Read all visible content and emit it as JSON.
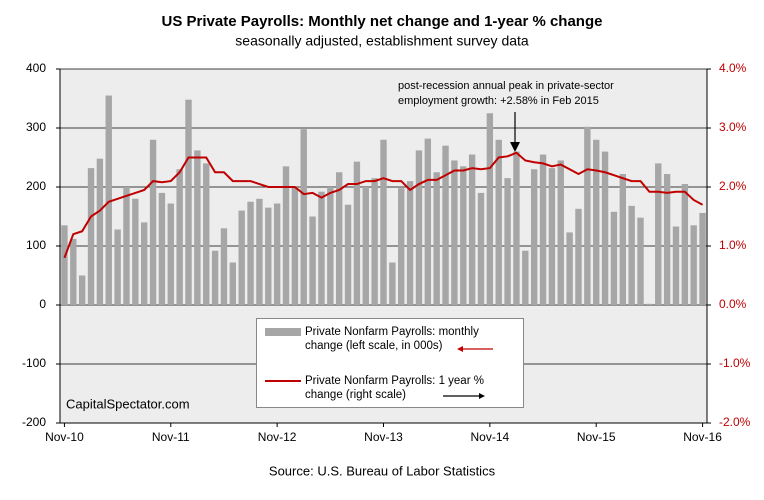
{
  "chart_data": {
    "type": "bar_line",
    "title": "US Private Payrolls: Monthly net change and 1-year % change",
    "subtitle": "seasonally adjusted, establishment survey data",
    "annotation": "post-recession annual peak in private-sector employment growth: +2.58% in Feb 2015",
    "watermark": "CapitalSpectator.com",
    "source": "Source: U.S. Bureau of Labor Statistics",
    "categories": [
      "Nov-10",
      null,
      null,
      null,
      null,
      null,
      null,
      null,
      null,
      null,
      null,
      null,
      "Nov-11",
      null,
      null,
      null,
      null,
      null,
      null,
      null,
      null,
      null,
      null,
      null,
      "Nov-12",
      null,
      null,
      null,
      null,
      null,
      null,
      null,
      null,
      null,
      null,
      null,
      "Nov-13",
      null,
      null,
      null,
      null,
      null,
      null,
      null,
      null,
      null,
      null,
      null,
      "Nov-14",
      null,
      null,
      null,
      null,
      null,
      null,
      null,
      null,
      null,
      null,
      null,
      "Nov-15",
      null,
      null,
      null,
      null,
      null,
      null,
      null,
      null,
      null,
      null,
      null,
      "Nov-16"
    ],
    "series": [
      {
        "name": "Private Nonfarm Payrolls: monthly change (left scale, in 000s)",
        "kind": "bar",
        "color": "#a6a6a6",
        "values": [
          135,
          112,
          50,
          232,
          248,
          355,
          128,
          200,
          180,
          140,
          280,
          190,
          172,
          230,
          348,
          262,
          240,
          92,
          130,
          72,
          160,
          175,
          180,
          165,
          172,
          235,
          200,
          298,
          150,
          192,
          200,
          225,
          170,
          243,
          200,
          215,
          280,
          72,
          198,
          210,
          262,
          282,
          225,
          270,
          245,
          235,
          255,
          190,
          325,
          280,
          215,
          260,
          92,
          230,
          255,
          232,
          245,
          123,
          163,
          302,
          280,
          260,
          158,
          222,
          168,
          148,
          2,
          240,
          222,
          133,
          205,
          135,
          156
        ]
      },
      {
        "name": "Private Nonfarm Payrolls:  1 year % change (right scale)",
        "kind": "line",
        "axis": "y2",
        "color": "#c00000",
        "values": [
          0.8,
          1.2,
          1.25,
          1.5,
          1.6,
          1.75,
          1.8,
          1.85,
          1.9,
          1.95,
          2.1,
          2.08,
          2.1,
          2.25,
          2.5,
          2.5,
          2.5,
          2.25,
          2.25,
          2.1,
          2.1,
          2.1,
          2.05,
          2.0,
          2.0,
          2.0,
          2.0,
          1.88,
          1.9,
          1.82,
          1.9,
          1.95,
          2.05,
          2.05,
          2.1,
          2.1,
          2.15,
          2.1,
          2.1,
          1.95,
          2.05,
          2.12,
          2.12,
          2.2,
          2.28,
          2.28,
          2.32,
          2.3,
          2.32,
          2.5,
          2.52,
          2.58,
          2.45,
          2.42,
          2.4,
          2.35,
          2.38,
          2.3,
          2.22,
          2.3,
          2.28,
          2.25,
          2.2,
          2.15,
          2.1,
          2.1,
          1.92,
          1.92,
          1.9,
          1.92,
          1.92,
          1.78,
          1.7
        ]
      }
    ],
    "ylim": [
      -200,
      400
    ],
    "yticks": [
      -200,
      -100,
      0,
      100,
      200,
      300,
      400
    ],
    "y2lim": [
      -2,
      4
    ],
    "y2ticks": [
      {
        "value": -2,
        "label": "-2.0%"
      },
      {
        "value": -1,
        "label": "-1.0%"
      },
      {
        "value": 0,
        "label": "0.0%"
      },
      {
        "value": 1,
        "label": "1.0%"
      },
      {
        "value": 2,
        "label": "2.0%"
      },
      {
        "value": 3,
        "label": "3.0%"
      },
      {
        "value": 4,
        "label": "4.0%"
      }
    ],
    "grid": true
  }
}
